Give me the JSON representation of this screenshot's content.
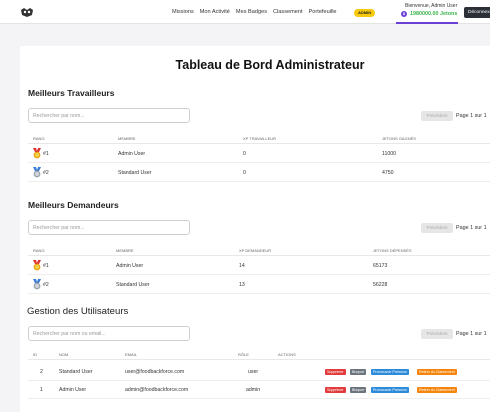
{
  "header": {
    "nav": [
      "Missions",
      "Mon Activité",
      "Mes Badges",
      "Classement",
      "Portefeuille"
    ],
    "admin_badge": "ADMIN",
    "welcome": "Bienvenue, Admin User",
    "jetons": "1980000.00 Jetons",
    "jeton_icon": "$",
    "logout": "Déconnexion"
  },
  "page": {
    "title": "Tableau de Bord Administrateur"
  },
  "workers": {
    "title": "Meilleurs Travailleurs",
    "search_placeholder": "Rechercher par nom...",
    "prev": "Précédent",
    "page_info": "Page 1 sur 1",
    "columns": [
      "RANG",
      "MEMBRE",
      "XP TRAVAILLEUR",
      "JETONS GAGNÉS"
    ],
    "rows": [
      {
        "rank": "#1",
        "member": "Admin User",
        "xp": "0",
        "jetons": "11000",
        "medal": "gold-medal-icon"
      },
      {
        "rank": "#2",
        "member": "Standard User",
        "xp": "0",
        "jetons": "4750",
        "medal": "silver-medal-icon"
      }
    ]
  },
  "requesters": {
    "title": "Meilleurs Demandeurs",
    "search_placeholder": "Rechercher par nom...",
    "prev": "Précédent",
    "page_info": "Page 1 sur 1",
    "columns": [
      "RANG",
      "MEMBRE",
      "XP DEMANDEUR",
      "JETONS DÉPENSÉS"
    ],
    "rows": [
      {
        "rank": "#1",
        "member": "Admin User",
        "xp": "14",
        "jetons": "65173",
        "medal": "gold-medal-icon"
      },
      {
        "rank": "#2",
        "member": "Standard User",
        "xp": "13",
        "jetons": "56228",
        "medal": "silver-medal-icon"
      }
    ]
  },
  "users": {
    "title": "Gestion des Utilisateurs",
    "search_placeholder": "Rechercher par nom ou email...",
    "prev": "Précédent",
    "page_info": "Page 1 sur 1",
    "columns": [
      "ID",
      "NOM",
      "EMAIL",
      "RÔLE",
      "ACTIONS"
    ],
    "actions": [
      "Supprimer",
      "Bloquer",
      "Promouvoir Premium",
      "Retirer du Classement"
    ],
    "rows": [
      {
        "id": "2",
        "name": "Standard User",
        "email": "user@foodbackforce.com",
        "role": "user"
      },
      {
        "id": "1",
        "name": "Admin User",
        "email": "admin@foodbackforce.com",
        "role": "admin"
      }
    ]
  }
}
